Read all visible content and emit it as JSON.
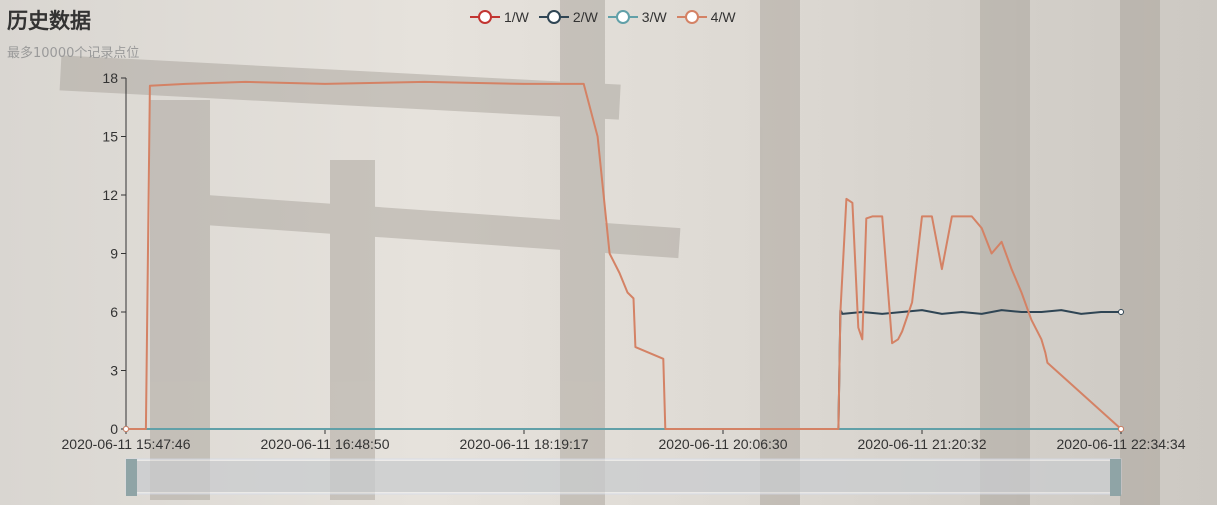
{
  "title": "历史数据",
  "subtitle": "最多10000个记录点位",
  "chart_data": {
    "type": "line",
    "title": "历史数据",
    "subtitle": "最多10000个记录点位",
    "xlabel": "",
    "ylabel": "",
    "ylim": [
      0,
      18
    ],
    "yticks": [
      "0",
      "3",
      "6",
      "9",
      "12",
      "15",
      "18"
    ],
    "x_tick_labels": [
      "2020-06-11 15:47:46",
      "2020-06-11 16:48:50",
      "2020-06-11 18:19:17",
      "2020-06-11 20:06:30",
      "2020-06-11 21:20:32",
      "2020-06-11 22:34:34"
    ],
    "x_domain": [
      0,
      5
    ],
    "legend_position": "top-center",
    "grid": false,
    "series": [
      {
        "name": "1/W",
        "color": "#c23531",
        "x": [
          0,
          5
        ],
        "values": [
          0,
          0
        ]
      },
      {
        "name": "2/W",
        "color": "#2f4554",
        "x": [
          0,
          3.58,
          3.59,
          3.6,
          3.7,
          3.8,
          3.9,
          4.0,
          4.1,
          4.2,
          4.3,
          4.4,
          4.5,
          4.6,
          4.7,
          4.8,
          4.9,
          5.0
        ],
        "values": [
          0,
          0,
          6.1,
          5.9,
          6.0,
          5.9,
          6.0,
          6.1,
          5.9,
          6.0,
          5.9,
          6.1,
          6.0,
          6.0,
          6.1,
          5.9,
          6.0,
          6.0
        ]
      },
      {
        "name": "3/W",
        "color": "#61a0a8",
        "x": [
          0,
          5
        ],
        "values": [
          0,
          0
        ]
      },
      {
        "name": "4/W",
        "color": "#d48265",
        "x": [
          0,
          0.1,
          0.12,
          0.3,
          0.6,
          1.0,
          1.5,
          2.0,
          2.3,
          2.37,
          2.43,
          2.48,
          2.52,
          2.55,
          2.56,
          2.7,
          2.71,
          2.75,
          2.8,
          2.85,
          2.9,
          2.95,
          3.0,
          3.5,
          3.58,
          3.59,
          3.62,
          3.65,
          3.68,
          3.7,
          3.72,
          3.75,
          3.78,
          3.8,
          3.85,
          3.88,
          3.9,
          3.95,
          4.0,
          4.05,
          4.1,
          4.15,
          4.2,
          4.25,
          4.3,
          4.35,
          4.4,
          4.45,
          4.5,
          4.55,
          4.6,
          4.62,
          4.63,
          5.0
        ],
        "values": [
          0,
          0,
          17.6,
          17.7,
          17.8,
          17.7,
          17.8,
          17.7,
          17.7,
          15.0,
          9.0,
          8.0,
          7.0,
          6.7,
          4.2,
          3.6,
          0,
          0,
          0,
          0,
          0,
          0,
          0,
          0,
          0,
          6.0,
          11.8,
          11.6,
          5.2,
          4.6,
          10.8,
          10.9,
          10.9,
          10.9,
          4.4,
          4.6,
          5.0,
          6.5,
          10.9,
          10.9,
          8.2,
          10.9,
          10.9,
          10.9,
          10.3,
          9.0,
          9.6,
          8.2,
          7.0,
          5.6,
          4.6,
          3.9,
          3.4,
          0
        ]
      }
    ]
  },
  "slider": {
    "start": 0,
    "end": 100
  }
}
